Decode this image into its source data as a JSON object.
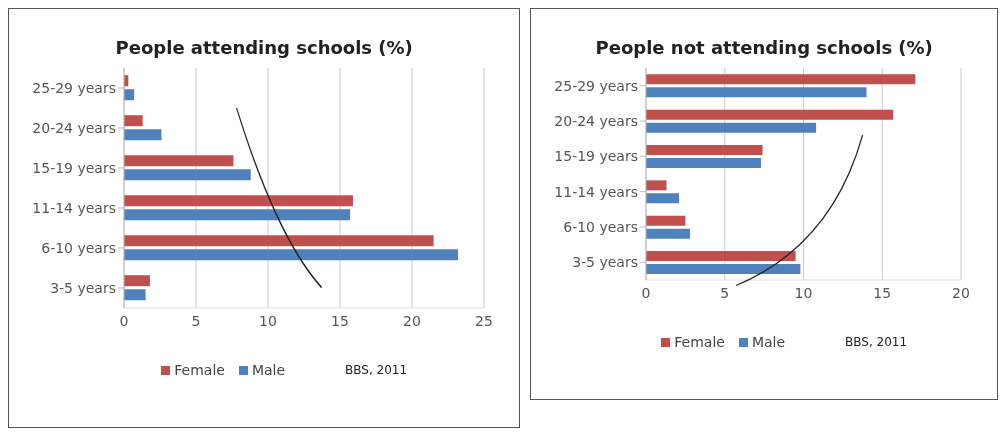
{
  "chart_data": [
    {
      "type": "bar",
      "orientation": "horizontal",
      "title": "People attending schools (%)",
      "categories": [
        "25-29 years",
        "20-24 years",
        "15-19 years",
        "11-14 years",
        "6-10 years",
        "3-5 years"
      ],
      "series": [
        {
          "name": "Female",
          "color": "#c0504d",
          "values": [
            0.3,
            1.3,
            7.6,
            15.9,
            21.5,
            1.8
          ]
        },
        {
          "name": "Male",
          "color": "#4f81bd",
          "values": [
            0.7,
            2.6,
            8.8,
            15.7,
            23.2,
            1.5
          ]
        }
      ],
      "xlim": [
        0,
        25
      ],
      "xticks": [
        0,
        5,
        10,
        15,
        20,
        25
      ],
      "grid": "x",
      "legend": "bottom",
      "annotations": [
        "BBS, 2011"
      ]
    },
    {
      "type": "bar",
      "orientation": "horizontal",
      "title": "People not attending schools (%)",
      "categories": [
        "25-29 years",
        "20-24 years",
        "15-19 years",
        "11-14 years",
        "6-10 years",
        "3-5 years"
      ],
      "series": [
        {
          "name": "Female",
          "color": "#c0504d",
          "values": [
            17.1,
            15.7,
            7.4,
            1.3,
            2.5,
            9.5
          ]
        },
        {
          "name": "Male",
          "color": "#4f81bd",
          "values": [
            14.0,
            10.8,
            7.3,
            2.1,
            2.8,
            9.8
          ]
        }
      ],
      "xlim": [
        0,
        20
      ],
      "xticks": [
        0,
        5,
        10,
        15,
        20
      ],
      "grid": "x",
      "legend": "bottom",
      "annotations": [
        "BBS, 2011"
      ]
    }
  ]
}
